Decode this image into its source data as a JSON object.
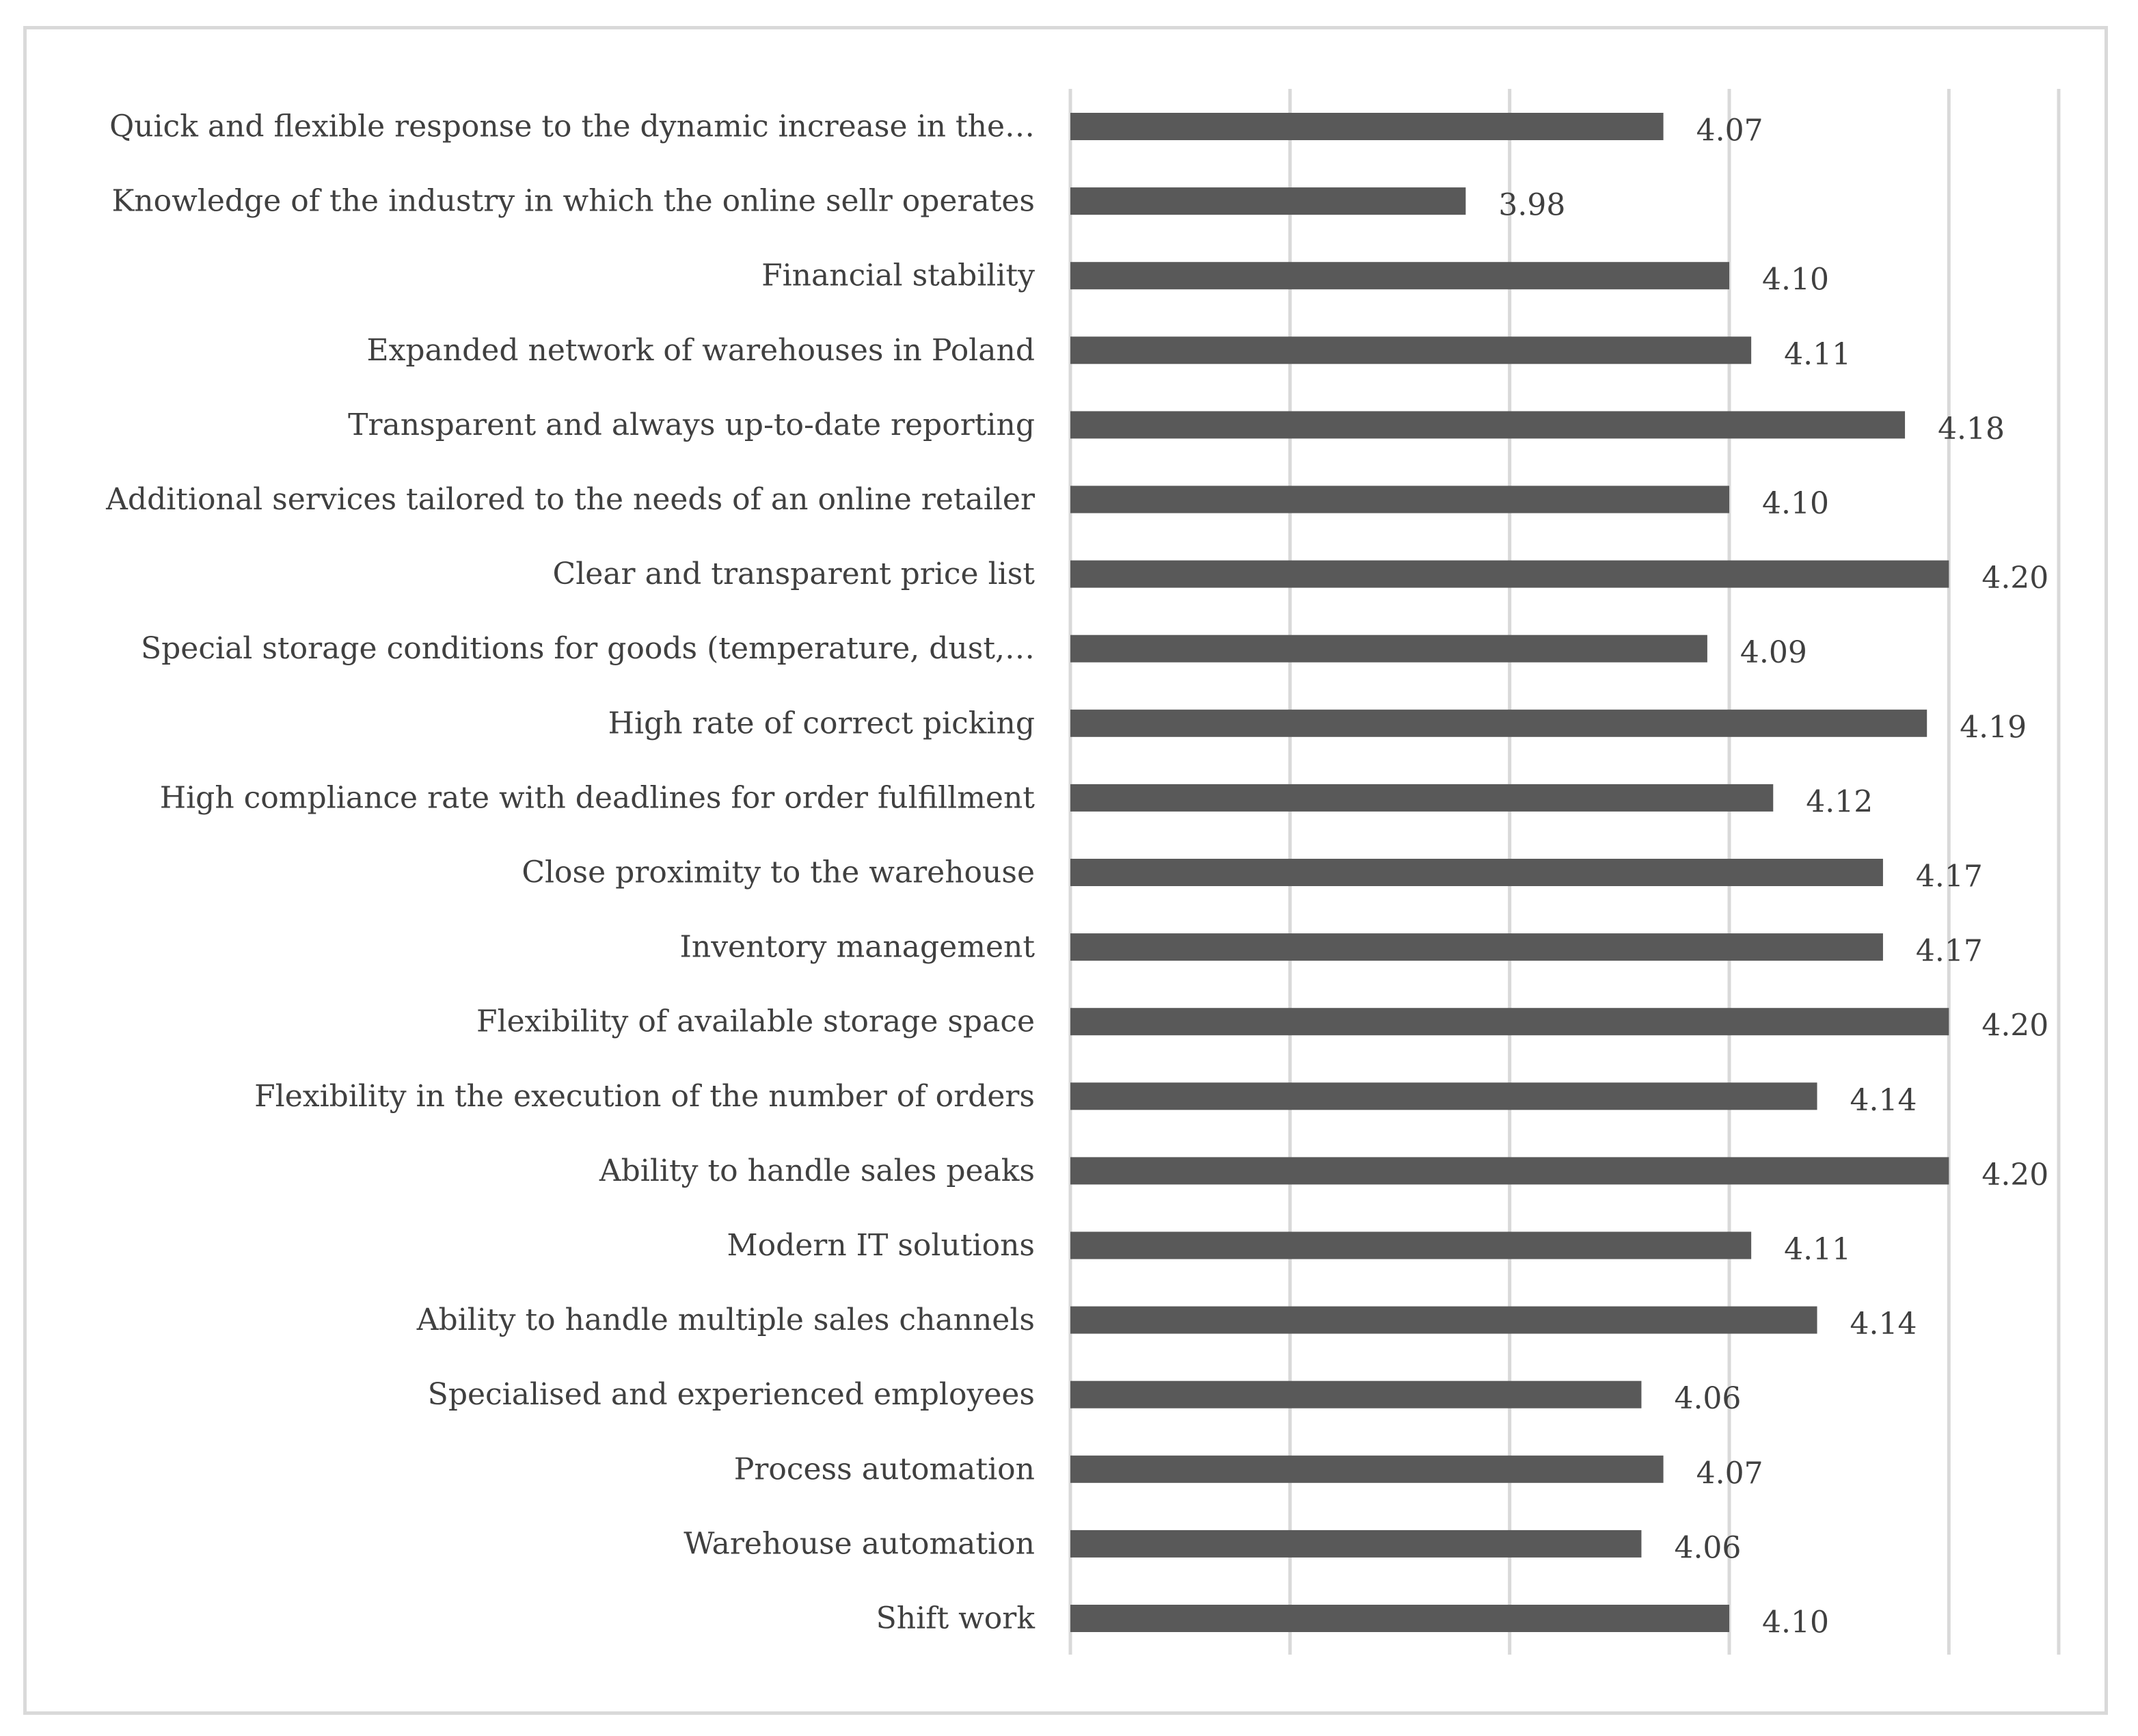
{
  "chart_data": {
    "type": "bar",
    "orientation": "horizontal",
    "title": "",
    "xlabel": "",
    "ylabel": "",
    "xlim": [
      3.8,
      4.25
    ],
    "grid": true,
    "legend": "none",
    "bar_color": "#595959",
    "grid_color": "#d9d9d9",
    "categories": [
      "Quick and flexible response to the dynamic increase in the…",
      "Knowledge of the industry in which the online sellr operates",
      "Financial stability",
      "Expanded network of warehouses in Poland",
      "Transparent and always up-to-date reporting",
      "Additional services tailored to the needs of an online retailer",
      "Clear and transparent price list",
      "Special storage conditions for goods (temperature, dust,…",
      "High rate of correct picking",
      "High compliance rate with deadlines for order fulfillment",
      "Close proximity to the warehouse",
      "Inventory management",
      "Flexibility of available storage space",
      "Flexibility in the execution of the number of orders",
      "Ability to handle sales peaks",
      "Modern IT solutions",
      "Ability to handle multiple sales channels",
      "Specialised and experienced employees",
      "Process automation",
      "Warehouse automation",
      "Shift work"
    ],
    "values": [
      4.07,
      3.98,
      4.1,
      4.11,
      4.18,
      4.1,
      4.2,
      4.09,
      4.19,
      4.12,
      4.17,
      4.17,
      4.2,
      4.14,
      4.2,
      4.11,
      4.14,
      4.06,
      4.07,
      4.06,
      4.1
    ],
    "value_labels": [
      "4.07",
      "3.98",
      "4.10",
      "4.11",
      "4.18",
      "4.10",
      "4.20",
      "4.09",
      "4.19",
      "4.12",
      "4.17",
      "4.17",
      "4.20",
      "4.14",
      "4.20",
      "4.11",
      "4.14",
      "4.06",
      "4.07",
      "4.06",
      "4.10"
    ]
  }
}
